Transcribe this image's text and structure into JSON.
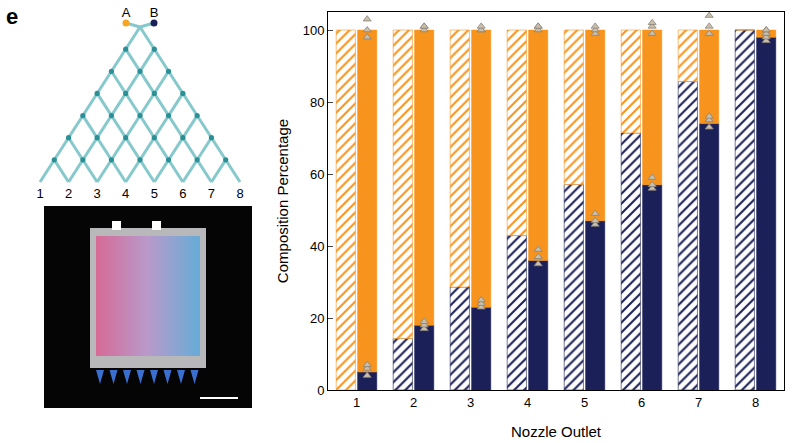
{
  "panel_label": "e",
  "diagram": {
    "inputs": [
      "A",
      "B"
    ],
    "outlets": [
      "1",
      "2",
      "3",
      "4",
      "5",
      "6",
      "7",
      "8"
    ]
  },
  "chart_data": {
    "type": "bar",
    "stacked": true,
    "categories": [
      "1",
      "2",
      "3",
      "4",
      "5",
      "6",
      "7",
      "8"
    ],
    "xlabel": "Nozzle Outlet",
    "ylabel": "Composition Percentage",
    "ylim": [
      0,
      105
    ],
    "yticks": [
      0,
      20,
      40,
      60,
      80,
      100
    ],
    "grid": false,
    "groups": [
      {
        "marker": "hatched",
        "series": [
          {
            "color": "#1c2058",
            "values": [
              0,
              14.3,
              28.6,
              42.9,
              57.1,
              71.4,
              85.7,
              100
            ]
          },
          {
            "color": "#f7941d",
            "values": [
              100,
              85.7,
              71.4,
              57.1,
              42.9,
              28.6,
              14.3,
              0
            ]
          }
        ]
      },
      {
        "marker": "solid",
        "series": [
          {
            "color": "#1c2058",
            "values": [
              5,
              18,
              23,
              36,
              47,
              57,
              74,
              98
            ]
          },
          {
            "color": "#f7941d",
            "values": [
              95,
              82,
              77,
              64,
              53,
              43,
              26,
              2
            ]
          }
        ]
      }
    ],
    "points": [
      {
        "type": "scatter",
        "marker": "triangle",
        "color": "#c9bfae",
        "values": [
          [
            4,
            6,
            7
          ],
          [
            17,
            18,
            19
          ],
          [
            23,
            24,
            25
          ],
          [
            35,
            37,
            39
          ],
          [
            46,
            47,
            49
          ],
          [
            56,
            57,
            59
          ],
          [
            73,
            75,
            76
          ],
          [
            97,
            98,
            99
          ]
        ]
      },
      {
        "type": "scatter",
        "marker": "triangle",
        "color": "#c9bfae",
        "values": [
          [
            98,
            100,
            103
          ],
          [
            100,
            101,
            101
          ],
          [
            100,
            100,
            101
          ],
          [
            100,
            101,
            101
          ],
          [
            99,
            100,
            101
          ],
          [
            99,
            101,
            102
          ],
          [
            99,
            101,
            104
          ],
          [
            99,
            100,
            100
          ]
        ]
      }
    ]
  }
}
